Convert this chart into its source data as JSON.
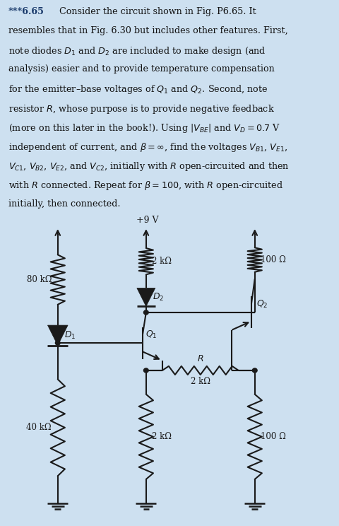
{
  "bg_color": "#cde0f0",
  "line_color": "#1a1a1a",
  "vcc_label": "+9 V",
  "R_top_mid": "2 kΩ",
  "R_top_right": "100 Ω",
  "R_left_top": "80 kΩ",
  "R_left_bot": "40 kΩ",
  "D2_label": "D_2",
  "D1_label": "D_1",
  "Q1_label": "Q_1",
  "Q2_label": "Q_2",
  "R_label": "R",
  "R_mid_val": "2 kΩ",
  "R_bot_mid": "2 kΩ",
  "R_bot_right": "100 Ω",
  "title_bold": "***6.65",
  "body_line1": "Consider the circuit shown in Fig. P6.65. It",
  "body_line2": "resembles that in Fig. 6.30 but includes other features. First,",
  "body_line3": "note diodes $D_1$ and $D_2$ are included to make design (and",
  "body_line4": "analysis) easier and to provide temperature compensation",
  "body_line5": "for the emitter–base voltages of $Q_1$ and $Q_2$. Second, note",
  "body_line6": "resistor $R$, whose purpose is to provide negative feedback",
  "body_line7": "(more on this later in the book!). Using $|V_{BE}|$ and $V_D = 0.7$ V",
  "body_line8": "independent of current, and $\\beta=\\infty$, find the voltages $V_{B1}$, $V_{E1}$,",
  "body_line9": "$V_{C1}$, $V_{B2}$, $V_{E2}$, and $V_{C2}$, initially with $R$ open-circuited and then",
  "body_line10": "with $R$ connected. Repeat for $\\beta = 100$, with $R$ open-circuited",
  "body_line11": "initially, then connected."
}
